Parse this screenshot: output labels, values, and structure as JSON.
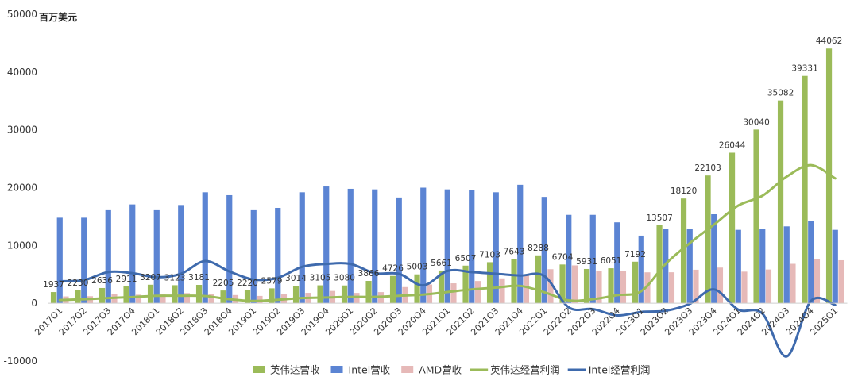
{
  "chart_data": {
    "type": "bar",
    "unit_label": "百万美元",
    "ylim": [
      -10000,
      50000
    ],
    "yticks": [
      -10000,
      0,
      10000,
      20000,
      30000,
      40000,
      50000
    ],
    "grid": false,
    "legend_position": "bottom",
    "categories": [
      "2017Q1",
      "2017Q2",
      "2017Q3",
      "2017Q4",
      "2018Q1",
      "2018Q2",
      "2018Q3",
      "2018Q4",
      "2019Q1",
      "2019Q2",
      "2019Q3",
      "2019Q4",
      "2020Q1",
      "2020Q2",
      "2020Q3",
      "2020Q4",
      "2021Q1",
      "2021Q2",
      "2021Q3",
      "2021Q4",
      "2022Q1",
      "2022Q2",
      "2022Q3",
      "2022Q4",
      "2023Q1",
      "2023Q2",
      "2023Q3",
      "2023Q4",
      "2024Q1",
      "2024Q2",
      "2024Q3",
      "2024Q4",
      "2025Q1"
    ],
    "series": [
      {
        "name": "英伟达营收",
        "kind": "bar",
        "color": "#9bbb59",
        "labeled": true,
        "values": [
          1937,
          2230,
          2636,
          2911,
          3207,
          3123,
          3181,
          2205,
          2220,
          2579,
          3014,
          3105,
          3080,
          3866,
          4726,
          5003,
          5661,
          6507,
          7103,
          7643,
          8288,
          6704,
          5931,
          6051,
          7192,
          13507,
          18120,
          22103,
          26044,
          30040,
          35082,
          39331,
          44062
        ]
      },
      {
        "name": "Intel营收",
        "kind": "bar",
        "color": "#5b84d3",
        "labeled": false,
        "values": [
          14800,
          14800,
          16100,
          17100,
          16100,
          17000,
          19200,
          18700,
          16100,
          16500,
          19200,
          20200,
          19800,
          19700,
          18300,
          20000,
          19700,
          19600,
          19200,
          20500,
          18400,
          15300,
          15300,
          14000,
          11700,
          12900,
          12900,
          15400,
          12700,
          12800,
          13300,
          14300,
          12700
        ]
      },
      {
        "name": "AMD营收",
        "kind": "bar",
        "color": "#e6b9b8",
        "labeled": false,
        "values": [
          1180,
          1220,
          1640,
          1480,
          1650,
          1760,
          1650,
          1420,
          1270,
          1530,
          1800,
          2130,
          1790,
          1930,
          2800,
          3240,
          3450,
          3850,
          4310,
          4830,
          5890,
          6550,
          5570,
          5600,
          5350,
          5360,
          5800,
          6170,
          5470,
          5840,
          6820,
          7660,
          7440
        ]
      },
      {
        "name": "英伟达经营利润",
        "kind": "line",
        "color": "#9bbb59",
        "values": [
          550,
          690,
          900,
          1070,
          1300,
          1300,
          1250,
          700,
          400,
          600,
          900,
          1000,
          1100,
          1100,
          1300,
          1500,
          1950,
          2400,
          2700,
          3000,
          1900,
          500,
          700,
          1400,
          2100,
          6800,
          10400,
          13600,
          16900,
          18600,
          21900,
          23900,
          21600
        ]
      },
      {
        "name": "Intel经营利润",
        "kind": "line",
        "color": "#3e6aad",
        "values": [
          3800,
          4000,
          5400,
          5200,
          4500,
          5100,
          7300,
          5500,
          4100,
          4400,
          6300,
          6800,
          6800,
          5200,
          5100,
          3100,
          5600,
          5400,
          5100,
          4800,
          4700,
          -700,
          -1000,
          -2100,
          -1500,
          -1300,
          -100,
          2400,
          -1100,
          -1800,
          -9200,
          400,
          -300
        ]
      }
    ]
  }
}
